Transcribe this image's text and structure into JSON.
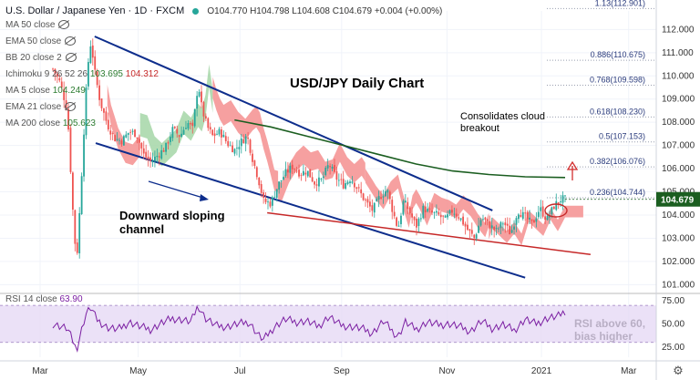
{
  "header": {
    "title": "U.S. Dollar / Japanese Yen · 1D · FXCM",
    "ohlc": "O104.770 H104.798 L104.608 C104.679 +0.004 (+0.00%)"
  },
  "indicators": [
    {
      "label": "MA 50 close",
      "value": "",
      "hidden": true
    },
    {
      "label": "EMA 50 close",
      "value": "",
      "hidden": true
    },
    {
      "label": "BB 20 close 2",
      "value": "",
      "hidden": true
    },
    {
      "label": "Ichimoku 9 26 52 26",
      "value": "103.695",
      "value2": "104.312"
    },
    {
      "label": "MA 5 close",
      "value": "104.249"
    },
    {
      "label": "EMA 21 close",
      "value": "",
      "hidden": true
    },
    {
      "label": "MA 200 close",
      "value": "105.623"
    }
  ],
  "annotations": {
    "chart_title": "USD/JPY Daily Chart",
    "cloud_note_1": "Consolidates cloud",
    "cloud_note_2": "breakout",
    "channel_note_1": "Downward sloping",
    "channel_note_2": "channel",
    "rsi_note_1": "RSI above 60,",
    "rsi_note_2": "bias higher"
  },
  "fib_levels": [
    {
      "label": "1.13(112.901)",
      "value": 112.901
    },
    {
      "label": "0.886(110.675)",
      "value": 110.675
    },
    {
      "label": "0.768(109.598)",
      "value": 109.598
    },
    {
      "label": "0.618(108.230)",
      "value": 108.23
    },
    {
      "label": "0.5(107.153)",
      "value": 107.153
    },
    {
      "label": "0.382(106.076)",
      "value": 106.076
    },
    {
      "label": "0.236(104.744)",
      "value": 104.744
    }
  ],
  "current_price": {
    "label": "104.679",
    "value": 104.679
  },
  "rsi": {
    "label": "RSI 14 close",
    "value": "63.90"
  },
  "colors": {
    "up": "#26a69a",
    "down": "#ef5350",
    "channel": "#0d2d8c",
    "support": "#c62828",
    "ma200": "#1b5e20",
    "cloud_bull": "#a5d6a7",
    "cloud_bear": "#f48f8f",
    "rsi_line": "#7b1fa2",
    "rsi_band": "#e6d9f5",
    "price_tag": "#1b5e20"
  },
  "chart_data": {
    "type": "candlestick",
    "x_tick_labels": [
      "Mar",
      "May",
      "Jul",
      "Sep",
      "Nov",
      "2021",
      "Mar"
    ],
    "y_tick_labels": [
      "112.000",
      "111.000",
      "110.000",
      "109.000",
      "108.000",
      "107.000",
      "106.000",
      "105.000",
      "104.000",
      "103.000",
      "102.000",
      "101.000"
    ],
    "ylim": [
      100.7,
      112.8
    ],
    "rsi_tick_labels": [
      "75.00",
      "50.00",
      "25.00"
    ],
    "rsi_ylim": [
      14,
      80
    ],
    "rsi_levels": [
      70,
      30
    ],
    "close_path": [
      [
        0,
        110.3
      ],
      [
        0.02,
        109.7
      ],
      [
        0.04,
        108.5
      ],
      [
        0.055,
        104.2
      ],
      [
        0.065,
        101.9
      ],
      [
        0.075,
        104.5
      ],
      [
        0.085,
        107.5
      ],
      [
        0.095,
        110.3
      ],
      [
        0.105,
        111.5
      ],
      [
        0.115,
        110.2
      ],
      [
        0.13,
        108.9
      ],
      [
        0.15,
        107.9
      ],
      [
        0.17,
        107.3
      ],
      [
        0.19,
        107.2
      ],
      [
        0.21,
        107.6
      ],
      [
        0.23,
        107.5
      ],
      [
        0.25,
        106.6
      ],
      [
        0.27,
        106.3
      ],
      [
        0.29,
        106.6
      ],
      [
        0.31,
        106.9
      ],
      [
        0.33,
        107.7
      ],
      [
        0.35,
        107.4
      ],
      [
        0.37,
        108.0
      ],
      [
        0.385,
        107.7
      ],
      [
        0.4,
        109.7
      ],
      [
        0.41,
        108.6
      ],
      [
        0.425,
        107.8
      ],
      [
        0.44,
        107.4
      ],
      [
        0.46,
        107.6
      ],
      [
        0.48,
        107.1
      ],
      [
        0.5,
        106.8
      ],
      [
        0.52,
        107.2
      ],
      [
        0.535,
        107.4
      ],
      [
        0.55,
        106.4
      ],
      [
        0.565,
        105.6
      ],
      [
        0.58,
        104.6
      ],
      [
        0.6,
        104.5
      ],
      [
        0.62,
        105.3
      ],
      [
        0.64,
        105.8
      ],
      [
        0.66,
        106.1
      ],
      [
        0.68,
        105.8
      ],
      [
        0.7,
        105.9
      ],
      [
        0.72,
        105.4
      ],
      [
        0.74,
        105.5
      ],
      [
        0.76,
        106.2
      ],
      [
        0.78,
        105.6
      ],
      [
        0.8,
        105.3
      ],
      [
        0.82,
        105.6
      ],
      [
        0.84,
        105.1
      ],
      [
        0.86,
        104.6
      ],
      [
        0.88,
        104.2
      ],
      [
        0.9,
        104.8
      ],
      [
        0.92,
        105.1
      ],
      [
        0.935,
        104.2
      ],
      [
        0.95,
        103.4
      ],
      [
        0.965,
        104.6
      ],
      [
        0.98,
        104.2
      ],
      [
        1.0,
        103.5
      ],
      [
        1.02,
        104.3
      ],
      [
        1.04,
        104.1
      ],
      [
        1.06,
        104.0
      ],
      [
        1.08,
        103.8
      ],
      [
        1.1,
        104.2
      ],
      [
        1.12,
        103.9
      ],
      [
        1.14,
        103.4
      ],
      [
        1.16,
        103.0
      ],
      [
        1.18,
        103.9
      ],
      [
        1.2,
        103.6
      ],
      [
        1.22,
        103.3
      ],
      [
        1.24,
        103.7
      ],
      [
        1.26,
        103.2
      ],
      [
        1.28,
        104.2
      ],
      [
        1.3,
        103.9
      ],
      [
        1.32,
        103.6
      ],
      [
        1.34,
        104.3
      ],
      [
        1.36,
        103.8
      ],
      [
        1.38,
        104.4
      ],
      [
        1.4,
        104.7
      ],
      [
        1.41,
        104.68
      ]
    ],
    "rsi_path": [
      [
        0,
        50
      ],
      [
        0.04,
        45
      ],
      [
        0.065,
        22
      ],
      [
        0.09,
        60
      ],
      [
        0.105,
        68
      ],
      [
        0.12,
        55
      ],
      [
        0.15,
        46
      ],
      [
        0.18,
        44
      ],
      [
        0.21,
        52
      ],
      [
        0.24,
        47
      ],
      [
        0.27,
        44
      ],
      [
        0.3,
        51
      ],
      [
        0.33,
        56
      ],
      [
        0.36,
        54
      ],
      [
        0.38,
        52
      ],
      [
        0.4,
        70
      ],
      [
        0.42,
        56
      ],
      [
        0.45,
        48
      ],
      [
        0.48,
        47
      ],
      [
        0.51,
        50
      ],
      [
        0.54,
        52
      ],
      [
        0.565,
        38
      ],
      [
        0.58,
        33
      ],
      [
        0.61,
        47
      ],
      [
        0.64,
        55
      ],
      [
        0.67,
        52
      ],
      [
        0.7,
        53
      ],
      [
        0.73,
        47
      ],
      [
        0.76,
        58
      ],
      [
        0.79,
        49
      ],
      [
        0.82,
        47
      ],
      [
        0.85,
        45
      ],
      [
        0.88,
        40
      ],
      [
        0.91,
        53
      ],
      [
        0.935,
        42
      ],
      [
        0.95,
        36
      ],
      [
        0.97,
        52
      ],
      [
        1.0,
        44
      ],
      [
        1.03,
        52
      ],
      [
        1.06,
        49
      ],
      [
        1.09,
        50
      ],
      [
        1.12,
        47
      ],
      [
        1.15,
        42
      ],
      [
        1.18,
        53
      ],
      [
        1.21,
        45
      ],
      [
        1.24,
        49
      ],
      [
        1.27,
        43
      ],
      [
        1.3,
        55
      ],
      [
        1.33,
        50
      ],
      [
        1.36,
        56
      ],
      [
        1.39,
        58
      ],
      [
        1.41,
        63.9
      ]
    ],
    "ma200_path": [
      [
        0.5,
        108.1
      ],
      [
        0.6,
        107.8
      ],
      [
        0.7,
        107.4
      ],
      [
        0.8,
        107.0
      ],
      [
        0.9,
        106.6
      ],
      [
        1.0,
        106.2
      ],
      [
        1.1,
        105.9
      ],
      [
        1.2,
        105.75
      ],
      [
        1.3,
        105.65
      ],
      [
        1.41,
        105.62
      ]
    ],
    "channel_upper": [
      [
        0.115,
        111.7
      ],
      [
        1.21,
        104.2
      ]
    ],
    "channel_lower": [
      [
        0.118,
        107.1
      ],
      [
        1.3,
        101.3
      ]
    ],
    "support_line": [
      [
        0.59,
        104.1
      ],
      [
        1.48,
        102.3
      ]
    ]
  }
}
